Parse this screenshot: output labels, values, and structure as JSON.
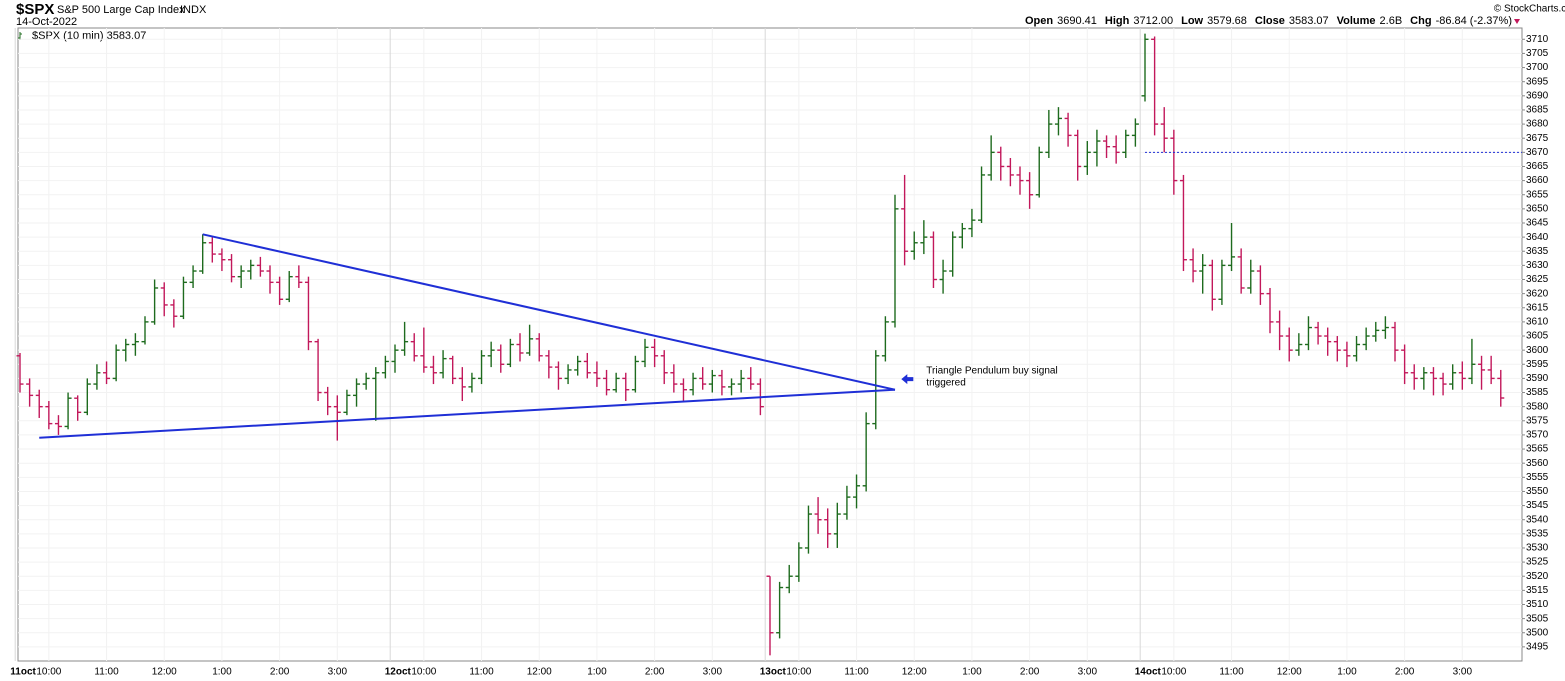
{
  "chart_data": {
    "type": "ohlc",
    "title": "$SPX",
    "subtitle": "S&P 500 Large Cap Index",
    "exchange": "INDX",
    "date": "14-Oct-2022",
    "legend": "$SPX (10 min) 3583.07",
    "copyright": "© StockCharts.com",
    "quote": [
      {
        "label": "Open",
        "value": "3690.41"
      },
      {
        "label": "High",
        "value": "3712.00"
      },
      {
        "label": "Low",
        "value": "3579.68"
      },
      {
        "label": "Close",
        "value": "3583.07"
      },
      {
        "label": "Volume",
        "value": "2.6B"
      },
      {
        "label": "Chg",
        "value": "-86.84 (-2.37%)"
      }
    ],
    "days": [
      "11oct",
      "12oct",
      "13oct",
      "14oct"
    ],
    "categories": [
      null,
      null,
      null,
      "10:00",
      null,
      null,
      null,
      null,
      null,
      "11:00",
      null,
      null,
      null,
      null,
      null,
      "12:00",
      null,
      null,
      null,
      null,
      null,
      "1:00",
      null,
      null,
      null,
      null,
      null,
      "2:00",
      null,
      null,
      null,
      null,
      null,
      "3:00",
      null,
      null,
      null,
      null,
      null,
      null,
      null,
      null,
      "10:00",
      null,
      null,
      null,
      null,
      null,
      "11:00",
      null,
      null,
      null,
      null,
      null,
      "12:00",
      null,
      null,
      null,
      null,
      null,
      "1:00",
      null,
      null,
      null,
      null,
      null,
      "2:00",
      null,
      null,
      null,
      null,
      null,
      "3:00",
      null,
      null,
      null,
      null,
      null,
      null,
      null,
      null,
      "10:00",
      null,
      null,
      null,
      null,
      null,
      "11:00",
      null,
      null,
      null,
      null,
      null,
      "12:00",
      null,
      null,
      null,
      null,
      null,
      "1:00",
      null,
      null,
      null,
      null,
      null,
      "2:00",
      null,
      null,
      null,
      null,
      null,
      "3:00",
      null,
      null,
      null,
      null,
      null,
      null,
      null,
      null,
      "10:00",
      null,
      null,
      null,
      null,
      null,
      "11:00",
      null,
      null,
      null,
      null,
      null,
      "12:00",
      null,
      null,
      null,
      null,
      null,
      "1:00",
      null,
      null,
      null,
      null,
      null,
      "2:00",
      null,
      null,
      null,
      null,
      null,
      "3:00",
      null,
      null,
      null,
      null
    ],
    "ohlc": [
      [
        3598,
        3599,
        3585,
        3588
      ],
      [
        3588,
        3590,
        3580,
        3584
      ],
      [
        3584,
        3586,
        3576,
        3580
      ],
      [
        3580,
        3582,
        3572,
        3574
      ],
      [
        3574,
        3577,
        3570,
        3573
      ],
      [
        3573,
        3585,
        3572,
        3583
      ],
      [
        3583,
        3584,
        3575,
        3578
      ],
      [
        3578,
        3590,
        3577,
        3588
      ],
      [
        3588,
        3595,
        3586,
        3592
      ],
      [
        3592,
        3596,
        3588,
        3590
      ],
      [
        3590,
        3602,
        3589,
        3600
      ],
      [
        3600,
        3604,
        3596,
        3602
      ],
      [
        3602,
        3606,
        3598,
        3603
      ],
      [
        3603,
        3612,
        3602,
        3610
      ],
      [
        3610,
        3625,
        3609,
        3622
      ],
      [
        3622,
        3624,
        3612,
        3616
      ],
      [
        3616,
        3618,
        3608,
        3612
      ],
      [
        3612,
        3626,
        3611,
        3624
      ],
      [
        3624,
        3630,
        3622,
        3628
      ],
      [
        3628,
        3641,
        3627,
        3638
      ],
      [
        3638,
        3640,
        3631,
        3634
      ],
      [
        3634,
        3636,
        3628,
        3632
      ],
      [
        3632,
        3634,
        3624,
        3626
      ],
      [
        3626,
        3630,
        3622,
        3628
      ],
      [
        3628,
        3632,
        3625,
        3630
      ],
      [
        3630,
        3633,
        3626,
        3628
      ],
      [
        3628,
        3630,
        3620,
        3624
      ],
      [
        3624,
        3626,
        3616,
        3618
      ],
      [
        3618,
        3628,
        3617,
        3626
      ],
      [
        3626,
        3630,
        3622,
        3624
      ],
      [
        3624,
        3626,
        3600,
        3603
      ],
      [
        3603,
        3604,
        3582,
        3585
      ],
      [
        3585,
        3587,
        3577,
        3580
      ],
      [
        3580,
        3584,
        3568,
        3578
      ],
      [
        3578,
        3586,
        3577,
        3584
      ],
      [
        3584,
        3590,
        3580,
        3588
      ],
      [
        3588,
        3592,
        3586,
        3590
      ],
      [
        3590,
        3594,
        3575,
        3592
      ],
      [
        3592,
        3598,
        3590,
        3596
      ],
      [
        3596,
        3602,
        3592,
        3600
      ],
      [
        3600,
        3610,
        3598,
        3603
      ],
      [
        3603,
        3606,
        3596,
        3598
      ],
      [
        3598,
        3608,
        3592,
        3594
      ],
      [
        3594,
        3598,
        3588,
        3592
      ],
      [
        3592,
        3600,
        3590,
        3597
      ],
      [
        3597,
        3598,
        3588,
        3590
      ],
      [
        3590,
        3594,
        3582,
        3587
      ],
      [
        3587,
        3592,
        3585,
        3590
      ],
      [
        3590,
        3600,
        3588,
        3598
      ],
      [
        3598,
        3603,
        3594,
        3600
      ],
      [
        3600,
        3602,
        3592,
        3595
      ],
      [
        3595,
        3604,
        3594,
        3602
      ],
      [
        3602,
        3606,
        3596,
        3599
      ],
      [
        3599,
        3609,
        3598,
        3604
      ],
      [
        3604,
        3606,
        3596,
        3598
      ],
      [
        3598,
        3600,
        3590,
        3594
      ],
      [
        3594,
        3596,
        3586,
        3590
      ],
      [
        3590,
        3595,
        3588,
        3593
      ],
      [
        3593,
        3598,
        3591,
        3596
      ],
      [
        3596,
        3599,
        3590,
        3592
      ],
      [
        3592,
        3596,
        3587,
        3590
      ],
      [
        3590,
        3593,
        3584,
        3586
      ],
      [
        3586,
        3592,
        3585,
        3590
      ],
      [
        3590,
        3592,
        3582,
        3586
      ],
      [
        3586,
        3598,
        3585,
        3596
      ],
      [
        3596,
        3604,
        3594,
        3601
      ],
      [
        3601,
        3604,
        3594,
        3598
      ],
      [
        3598,
        3600,
        3588,
        3592
      ],
      [
        3592,
        3595,
        3585,
        3588
      ],
      [
        3588,
        3590,
        3582,
        3586
      ],
      [
        3586,
        3592,
        3584,
        3590
      ],
      [
        3590,
        3594,
        3586,
        3588
      ],
      [
        3588,
        3593,
        3585,
        3591
      ],
      [
        3591,
        3593,
        3584,
        3587
      ],
      [
        3587,
        3590,
        3584,
        3588
      ],
      [
        3588,
        3593,
        3585,
        3590
      ],
      [
        3590,
        3594,
        3586,
        3588
      ],
      [
        3588,
        3590,
        3577,
        3580
      ],
      [
        3520,
        3520,
        3492,
        3500
      ],
      [
        3500,
        3518,
        3498,
        3516
      ],
      [
        3516,
        3524,
        3514,
        3520
      ],
      [
        3520,
        3532,
        3518,
        3530
      ],
      [
        3530,
        3545,
        3528,
        3542
      ],
      [
        3542,
        3548,
        3535,
        3540
      ],
      [
        3540,
        3544,
        3530,
        3535
      ],
      [
        3535,
        3546,
        3530,
        3542
      ],
      [
        3542,
        3552,
        3540,
        3548
      ],
      [
        3548,
        3556,
        3544,
        3552
      ],
      [
        3552,
        3578,
        3550,
        3574
      ],
      [
        3574,
        3600,
        3572,
        3598
      ],
      [
        3598,
        3612,
        3596,
        3610
      ],
      [
        3610,
        3655,
        3608,
        3650
      ],
      [
        3650,
        3662,
        3630,
        3635
      ],
      [
        3635,
        3642,
        3632,
        3638
      ],
      [
        3638,
        3646,
        3634,
        3640
      ],
      [
        3640,
        3642,
        3622,
        3625
      ],
      [
        3625,
        3632,
        3620,
        3628
      ],
      [
        3628,
        3642,
        3626,
        3640
      ],
      [
        3640,
        3645,
        3636,
        3643
      ],
      [
        3643,
        3650,
        3640,
        3646
      ],
      [
        3646,
        3665,
        3645,
        3662
      ],
      [
        3662,
        3676,
        3660,
        3670
      ],
      [
        3670,
        3672,
        3660,
        3665
      ],
      [
        3665,
        3668,
        3658,
        3662
      ],
      [
        3662,
        3665,
        3655,
        3660
      ],
      [
        3660,
        3663,
        3650,
        3655
      ],
      [
        3655,
        3672,
        3654,
        3670
      ],
      [
        3670,
        3685,
        3668,
        3680
      ],
      [
        3680,
        3686,
        3676,
        3682
      ],
      [
        3682,
        3684,
        3672,
        3676
      ],
      [
        3676,
        3678,
        3660,
        3665
      ],
      [
        3665,
        3674,
        3662,
        3670
      ],
      [
        3670,
        3678,
        3665,
        3674
      ],
      [
        3674,
        3676,
        3668,
        3672
      ],
      [
        3672,
        3676,
        3666,
        3670
      ],
      [
        3670,
        3678,
        3668,
        3676
      ],
      [
        3676,
        3682,
        3672,
        3680
      ],
      [
        3690,
        3712,
        3688,
        3710
      ],
      [
        3710,
        3711,
        3676,
        3680
      ],
      [
        3680,
        3686,
        3670,
        3675
      ],
      [
        3675,
        3678,
        3655,
        3660
      ],
      [
        3660,
        3662,
        3628,
        3632
      ],
      [
        3632,
        3636,
        3624,
        3628
      ],
      [
        3628,
        3634,
        3620,
        3630
      ],
      [
        3630,
        3632,
        3614,
        3618
      ],
      [
        3618,
        3632,
        3616,
        3630
      ],
      [
        3630,
        3645,
        3628,
        3633
      ],
      [
        3633,
        3636,
        3620,
        3622
      ],
      [
        3622,
        3632,
        3620,
        3628
      ],
      [
        3628,
        3630,
        3616,
        3620
      ],
      [
        3620,
        3622,
        3606,
        3610
      ],
      [
        3610,
        3614,
        3600,
        3605
      ],
      [
        3605,
        3608,
        3596,
        3600
      ],
      [
        3600,
        3606,
        3598,
        3602
      ],
      [
        3602,
        3612,
        3600,
        3608
      ],
      [
        3608,
        3610,
        3602,
        3605
      ],
      [
        3605,
        3608,
        3598,
        3603
      ],
      [
        3603,
        3605,
        3596,
        3600
      ],
      [
        3600,
        3603,
        3594,
        3598
      ],
      [
        3598,
        3605,
        3596,
        3602
      ],
      [
        3602,
        3608,
        3600,
        3605
      ],
      [
        3605,
        3610,
        3603,
        3607
      ],
      [
        3607,
        3612,
        3604,
        3608
      ],
      [
        3608,
        3610,
        3596,
        3600
      ],
      [
        3600,
        3602,
        3588,
        3592
      ],
      [
        3592,
        3595,
        3586,
        3590
      ],
      [
        3590,
        3594,
        3586,
        3592
      ],
      [
        3592,
        3594,
        3584,
        3590
      ],
      [
        3590,
        3592,
        3584,
        3588
      ],
      [
        3588,
        3595,
        3586,
        3592
      ],
      [
        3592,
        3596,
        3586,
        3590
      ],
      [
        3590,
        3604,
        3588,
        3595
      ],
      [
        3595,
        3598,
        3586,
        3593
      ],
      [
        3593,
        3598,
        3588,
        3590
      ],
      [
        3590,
        3593,
        3580,
        3583.07
      ]
    ],
    "up_color": "#1e6b1e",
    "down_color": "#c2185b",
    "ylim": [
      3490,
      3714
    ],
    "yticks": [
      3495,
      3500,
      3505,
      3510,
      3515,
      3520,
      3525,
      3530,
      3535,
      3540,
      3545,
      3550,
      3555,
      3560,
      3565,
      3570,
      3575,
      3580,
      3585,
      3590,
      3595,
      3600,
      3605,
      3610,
      3615,
      3620,
      3625,
      3630,
      3635,
      3640,
      3645,
      3650,
      3655,
      3660,
      3665,
      3670,
      3675,
      3680,
      3685,
      3690,
      3695,
      3700,
      3705,
      3710
    ],
    "grid": true,
    "trendlines": [
      {
        "from": [
          19,
          3641
        ],
        "to": [
          91,
          3586
        ],
        "color": "#1f2fd6"
      },
      {
        "from": [
          2,
          3569
        ],
        "to": [
          91,
          3586
        ],
        "color": "#1f2fd6"
      }
    ],
    "hline": {
      "value": 3670,
      "from": 117,
      "color": "#1f2fd6"
    },
    "annotation": {
      "text": "Triangle Pendulum buy signal",
      "text2": "triggered",
      "at": [
        98,
        3588
      ]
    }
  }
}
